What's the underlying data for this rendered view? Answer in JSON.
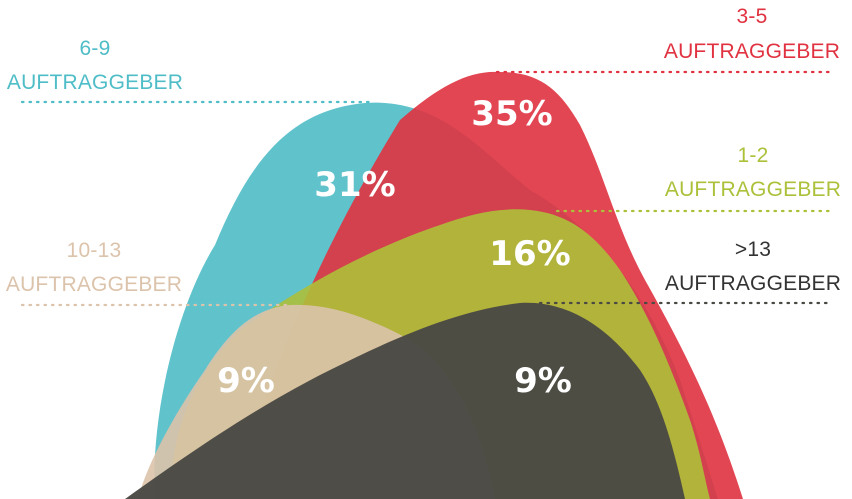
{
  "chart_data": {
    "type": "area",
    "series": [
      {
        "key": "s69",
        "range": "6-9",
        "name": "AUFTRAGGEBER",
        "value": 31,
        "value_label": "31%",
        "color": "#4fbdc7"
      },
      {
        "key": "s35",
        "range": "3-5",
        "name": "AUFTRAGGEBER",
        "value": 35,
        "value_label": "35%",
        "color": "#e03240"
      },
      {
        "key": "s12",
        "range": "1-2",
        "name": "AUFTRAGGEBER",
        "value": 16,
        "value_label": "16%",
        "color": "#adc03a"
      },
      {
        "key": "s1013",
        "range": "10-13",
        "name": "AUFTRAGGEBER",
        "value": 9,
        "value_label": "9%",
        "color": "#dcc3ab"
      },
      {
        "key": "sgt13",
        "range": ">13",
        "name": "AUFTRAGGEBER",
        "value": 9,
        "value_label": "9%",
        "color": "#4a4944"
      }
    ]
  }
}
